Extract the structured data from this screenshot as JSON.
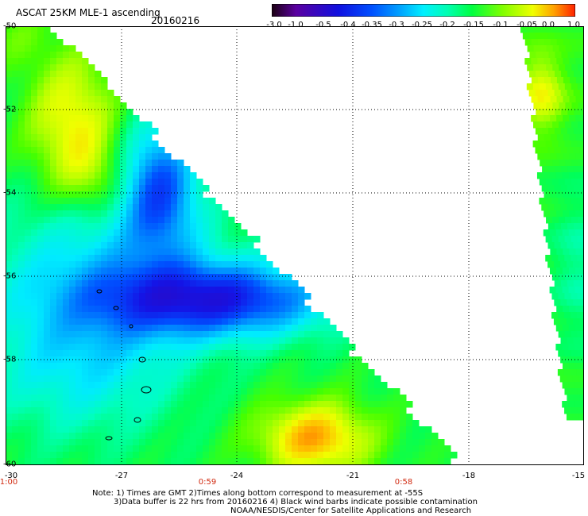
{
  "header": {
    "title": "ASCAT 25KM MLE-1 ascending",
    "date": "20160216"
  },
  "colorbar": {
    "labels": [
      "-3.0",
      "-1.0",
      "-0.5",
      "-0.4",
      "-0.35",
      "-0.3",
      "-0.25",
      "-0.2",
      "-0.15",
      "-0.1",
      "-0.05",
      "0.0",
      "1.0"
    ],
    "colors": [
      "#2a0030",
      "#6a00a8",
      "#3010d0",
      "#0030ff",
      "#0080ff",
      "#00c8ff",
      "#00ffd8",
      "#00ff70",
      "#30ff00",
      "#a0ff00",
      "#ffff00",
      "#ff9000",
      "#ff2000"
    ]
  },
  "axes": {
    "lat_labels": [
      "-50",
      "-52",
      "-54",
      "-56",
      "-58",
      "-60"
    ],
    "lon_labels": [
      "-30",
      "-27",
      "-24",
      "-21",
      "-18",
      "-15"
    ],
    "time_labels": [
      "1:00",
      "0:59",
      "0:58"
    ]
  },
  "footnote": {
    "line1": "Note: 1) Times are GMT 2)Times along bottom correspond to measurement at -55S",
    "line2": "3)Data buffer is 22 hrs from 20160216 4) Black wind barbs indicate possible contamination",
    "line3": "NOAA/NESDIS/Center for Satellite Applications and Research"
  }
}
